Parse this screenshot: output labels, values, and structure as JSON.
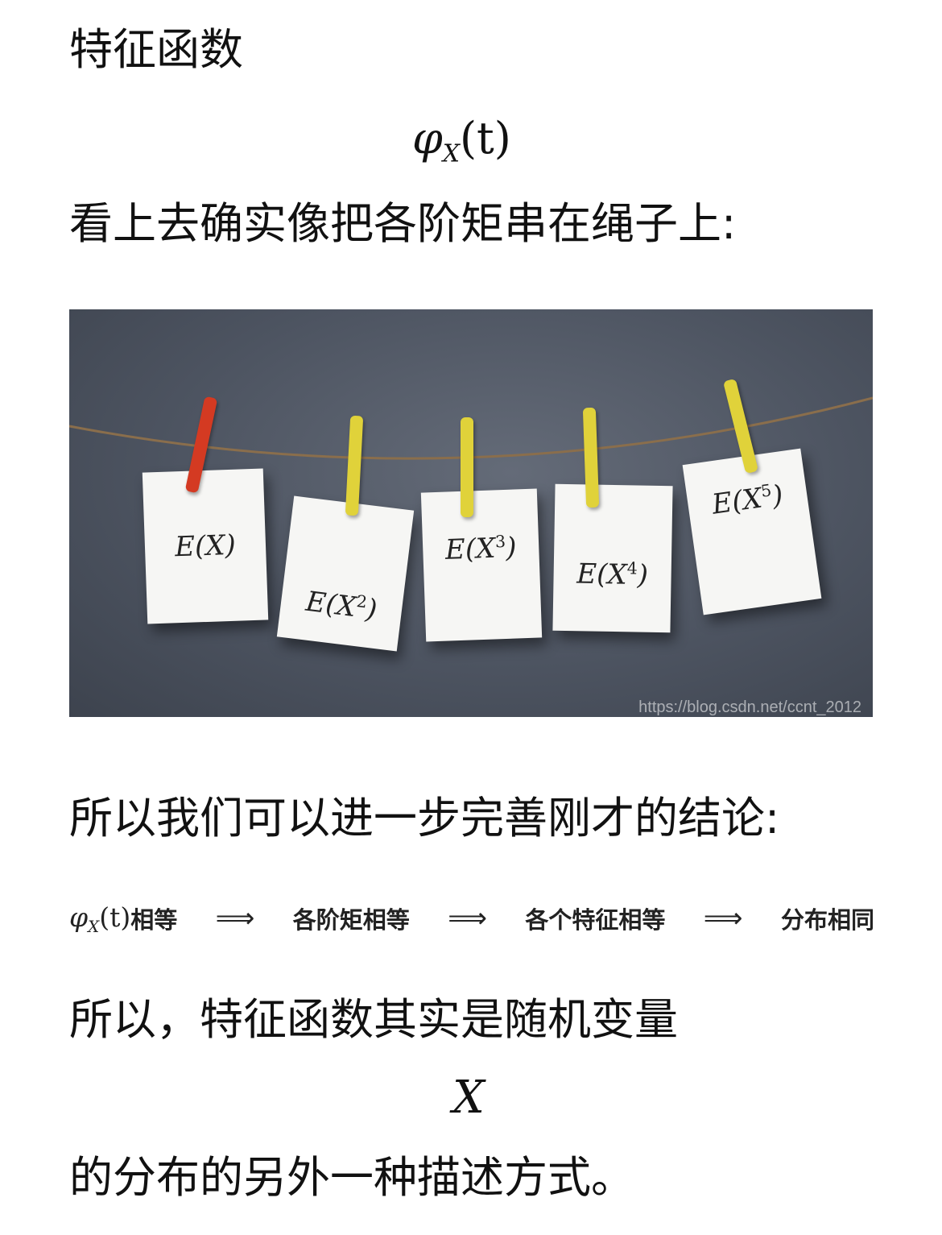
{
  "heading": "特征函数",
  "formula_phi": {
    "symbol": "φ",
    "sub": "X",
    "arg": "(t)"
  },
  "line_rope": "看上去确实像把各阶矩串在绳子上:",
  "photo": {
    "cards": [
      "E(X)",
      "E(X2)",
      "E(X3)",
      "E(X4)",
      "E(X5)"
    ],
    "card_base": "E(X",
    "card_close": ")",
    "card_exponents": [
      "",
      "2",
      "3",
      "4",
      "5"
    ],
    "watermark": "https://blog.csdn.net/ccnt_2012",
    "clip_colors": [
      "#d43a22",
      "#e0d23a",
      "#e0d23a",
      "#e0d23a",
      "#e0d23a"
    ]
  },
  "line_conclusion": "所以我们可以进一步完善刚才的结论:",
  "chain": {
    "seg1_suffix": "相等",
    "seg2": "各阶矩相等",
    "seg3": "各个特征相等",
    "seg4": "分布相同",
    "arrow": "⟹"
  },
  "line_so": "所以，特征函数其实是随机变量",
  "formula_x": "X",
  "line_last": "的分布的另外一种描述方式。"
}
